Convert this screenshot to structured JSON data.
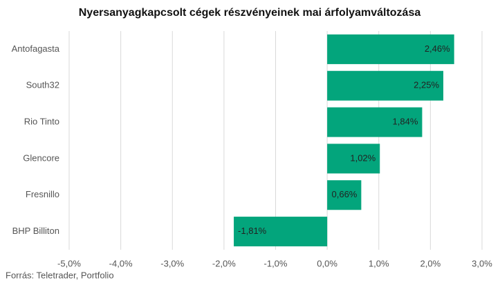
{
  "chart_data": {
    "type": "bar",
    "orientation": "horizontal",
    "title": "Nyersanyagkapcsolt cégek részvényeinek mai árfolyamváltozása",
    "source": "Forrás: Teletrader, Portfolio",
    "categories": [
      "Antofagasta",
      "South32",
      "Rio Tinto",
      "Glencore",
      "Fresnillo",
      "BHP Billiton"
    ],
    "values": [
      2.46,
      2.25,
      1.84,
      1.02,
      0.66,
      -1.81
    ],
    "value_labels": [
      "2,46%",
      "2,25%",
      "1,84%",
      "1,02%",
      "0,66%",
      "-1,81%"
    ],
    "color": "#03a57c",
    "xlim": [
      -5,
      3
    ],
    "xticks": [
      {
        "value": -5,
        "label": "-5,0%"
      },
      {
        "value": -4,
        "label": "-4,0%"
      },
      {
        "value": -3,
        "label": "-3,0%"
      },
      {
        "value": -2,
        "label": "-2,0%"
      },
      {
        "value": -1,
        "label": "-1,0%"
      },
      {
        "value": 0,
        "label": "0,0%"
      },
      {
        "value": 1,
        "label": "1,0%"
      },
      {
        "value": 2,
        "label": "2,0%"
      },
      {
        "value": 3,
        "label": "3,0%"
      }
    ],
    "grid": true
  }
}
